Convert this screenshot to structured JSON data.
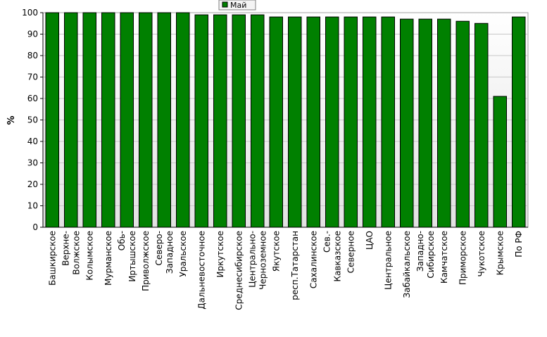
{
  "chart_data": {
    "type": "bar",
    "ylabel": "%",
    "xlabel": "",
    "ylim": [
      0,
      100
    ],
    "yticks": [
      0,
      10,
      20,
      30,
      40,
      50,
      60,
      70,
      80,
      90,
      100
    ],
    "grid": true,
    "legend": "top-center",
    "categories": [
      "Башкирское",
      "Верхне-\nВолжское",
      "Колымское",
      "Мурманское",
      "Обь-\nИртышское",
      "Приволжское",
      "Северо-\nЗападное",
      "Уральское",
      "Дальневосточное",
      "Иркутское",
      "Среднесибирское",
      "Центрально-\nЧерноземное",
      "Якутское",
      "респ.Татарстан",
      "Сахалинское",
      "Сев.-\nКавказское",
      "Северное",
      "ЦАО",
      "Центральное",
      "Забайкальское",
      "Западно-\nСибирское",
      "Камчатское",
      "Приморское",
      "Чукотское",
      "Крымское",
      "По РФ"
    ],
    "series": [
      {
        "name": "Май",
        "color": "#008000",
        "values": [
          100,
          100,
          100,
          100,
          100,
          100,
          100,
          100,
          99,
          99,
          99,
          99,
          98,
          98,
          98,
          98,
          98,
          98,
          98,
          97,
          97,
          97,
          96,
          95,
          61,
          98
        ]
      }
    ]
  },
  "colors": {
    "bar": "#008000",
    "plot_background_top": "#ffffff",
    "plot_background_bottom": "#e4e4e4",
    "gridline": "#c8c8c8"
  }
}
